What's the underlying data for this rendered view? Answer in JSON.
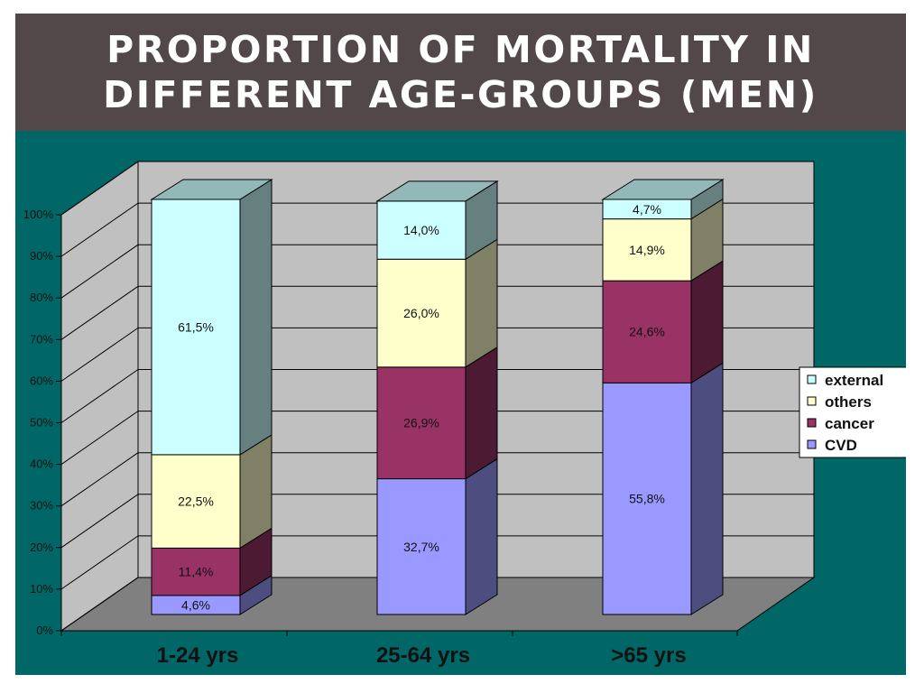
{
  "title": {
    "line1": "PROPORTION OF MORTALITY IN",
    "line2": "DIFFERENT AGE-GROUPS  (MEN)"
  },
  "colors": {
    "title_bg": "#524849",
    "panel_bg": "#006766",
    "wall": "#c0c0c0",
    "floor": "#808080",
    "external": "#ccffff",
    "others": "#ffffcc",
    "cancer": "#993366",
    "CVD": "#9999ff"
  },
  "chart_data": {
    "type": "bar",
    "stacked": true,
    "three_d": true,
    "categories": [
      "1-24 yrs",
      "25-64 yrs",
      ">65 yrs"
    ],
    "series": [
      {
        "name": "CVD",
        "values": [
          4.6,
          32.7,
          55.8
        ],
        "labels": [
          "4,6%",
          "32,7%",
          "55,8%"
        ]
      },
      {
        "name": "cancer",
        "values": [
          11.4,
          26.9,
          24.6
        ],
        "labels": [
          "11,4%",
          "26,9%",
          "24,6%"
        ]
      },
      {
        "name": "others",
        "values": [
          22.5,
          26.0,
          14.9
        ],
        "labels": [
          "22,5%",
          "26,0%",
          "14,9%"
        ]
      },
      {
        "name": "external",
        "values": [
          61.5,
          14.0,
          4.7
        ],
        "labels": [
          "61,5%",
          "14,0%",
          "4,7%"
        ]
      }
    ],
    "y_ticks": [
      "0%",
      "10%",
      "20%",
      "30%",
      "40%",
      "50%",
      "60%",
      "70%",
      "80%",
      "90%",
      "100%"
    ],
    "ylim": [
      0,
      100
    ],
    "legend_order": [
      "external",
      "others",
      "cancer",
      "CVD"
    ],
    "legend_position": "right",
    "grid": true
  }
}
